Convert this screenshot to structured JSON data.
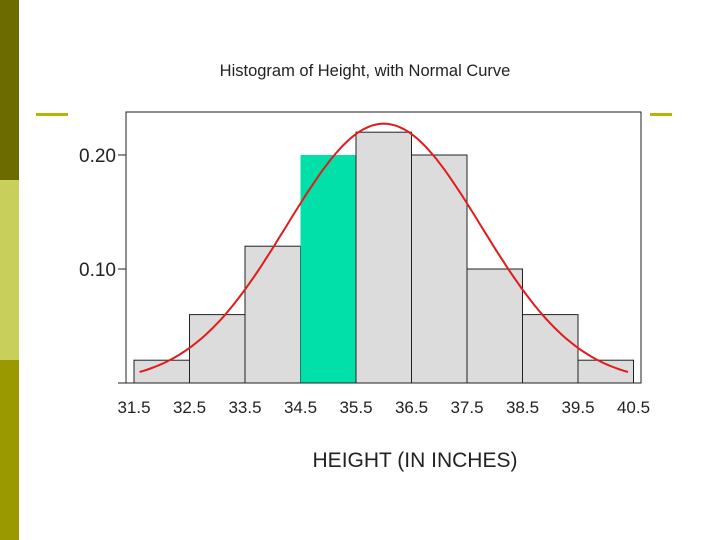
{
  "chart_data": {
    "type": "bar",
    "title": "Histogram of Height, with Normal Curve",
    "xlabel": "HEIGHT (IN INCHES)",
    "ylabel": "",
    "bin_edges": [
      31.5,
      32.5,
      33.5,
      34.5,
      35.5,
      36.5,
      37.5,
      38.5,
      39.5,
      40.5
    ],
    "x_tick_labels": [
      "31.5",
      "32.5",
      "33.5",
      "34.5",
      "35.5",
      "36.5",
      "37.5",
      "38.5",
      "39.5",
      "40.5"
    ],
    "values": [
      0.02,
      0.06,
      0.12,
      0.2,
      0.22,
      0.2,
      0.1,
      0.06,
      0.02
    ],
    "highlight_bin_index": 3,
    "y_ticks": [
      0,
      0.1,
      0.2
    ],
    "y_tick_labels": [
      "",
      "0.10",
      "0.20"
    ],
    "ylim": [
      0,
      0.24
    ],
    "normal_curve": {
      "mean": 36.0,
      "sd": 1.75,
      "scale": 0.2275
    },
    "colors": {
      "bar_fill": "#dcdcdc",
      "bar_stroke": "#222222",
      "highlight_fill": "#00e0a8",
      "curve": "#e01c1c"
    },
    "grid": false,
    "legend": "none"
  }
}
